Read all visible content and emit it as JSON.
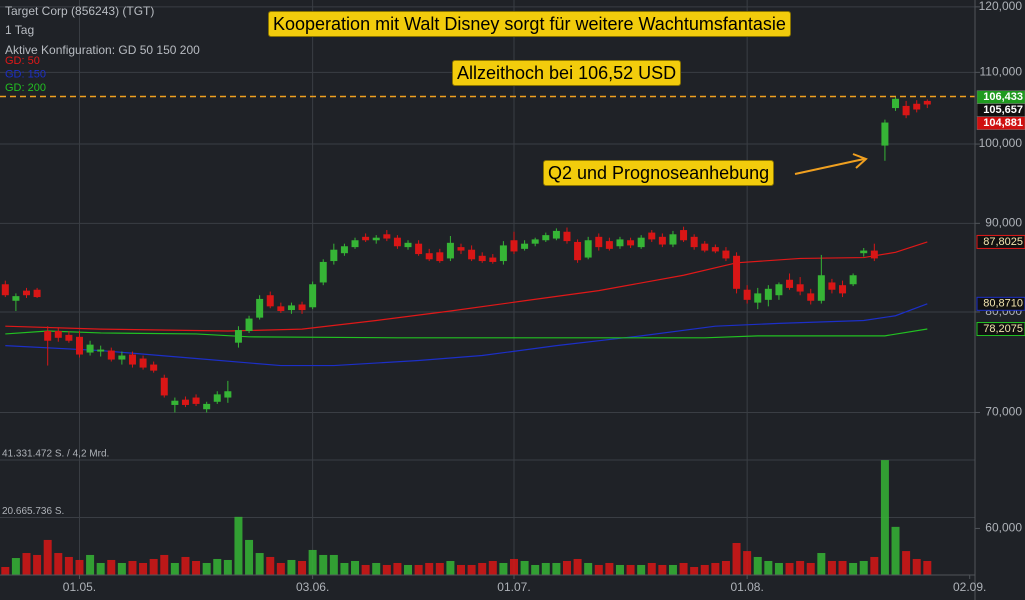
{
  "chart_data": {
    "type": "candlestick",
    "title": "Target Corp (856243) (TGT)",
    "interval": "1 Tag",
    "config": "Aktive Konfiguration: GD 50 150 200",
    "log_y": true,
    "grid": true,
    "up_color": "#36b536",
    "down_color": "#d91616",
    "xlim": [
      -0.5,
      91.5
    ],
    "xticks": [
      {
        "value": 7,
        "label": "01.05."
      },
      {
        "value": 29,
        "label": "03.06."
      },
      {
        "value": 48,
        "label": "01.07."
      },
      {
        "value": 70,
        "label": "01.08."
      },
      {
        "value": 91,
        "label": "02.09."
      }
    ],
    "ylim": [
      56.4,
      121.1
    ],
    "yticks": [
      {
        "value": 60,
        "label": "60,000"
      },
      {
        "value": 70,
        "label": "70,000"
      },
      {
        "value": 80,
        "label": "80,000"
      },
      {
        "value": 90,
        "label": "90,000"
      },
      {
        "value": 100,
        "label": "100,000"
      },
      {
        "value": 110,
        "label": "110,000"
      },
      {
        "value": 120,
        "label": "120,000"
      }
    ],
    "open": [
      83.0,
      81.2,
      82.3,
      82.4,
      78.0,
      78.0,
      77.6,
      77.4,
      75.8,
      75.9,
      76.0,
      75.1,
      75.6,
      75.2,
      74.6,
      73.3,
      70.7,
      71.2,
      71.4,
      70.3,
      71.0,
      71.4,
      76.8,
      78.0,
      79.4,
      81.8,
      80.6,
      80.2,
      80.8,
      80.5,
      83.2,
      85.6,
      86.5,
      87.2,
      88.4,
      88.0,
      88.7,
      88.3,
      87.2,
      87.6,
      86.5,
      86.6,
      85.9,
      87.2,
      86.9,
      86.2,
      86.0,
      85.6,
      88.0,
      87.0,
      87.6,
      88.0,
      88.2,
      89.0,
      87.8,
      86.0,
      88.4,
      87.9,
      87.3,
      88.0,
      87.2,
      88.9,
      88.4,
      87.5,
      89.2,
      88.4,
      87.6,
      87.2,
      86.8,
      86.2,
      82.4,
      81.0,
      81.3,
      81.8,
      83.5,
      83.0,
      82.0,
      81.2,
      83.2,
      82.9,
      83.0,
      86.5,
      86.8,
      99.8,
      104.9,
      105.2,
      105.5,
      105.9
    ],
    "high": [
      83.4,
      82.0,
      82.6,
      82.6,
      78.5,
      78.4,
      78.0,
      78.0,
      77.0,
      76.5,
      76.3,
      75.9,
      75.9,
      75.5,
      74.9,
      73.6,
      71.4,
      71.5,
      71.7,
      71.0,
      72.0,
      73.0,
      78.5,
      79.6,
      81.8,
      82.2,
      81.0,
      81.0,
      81.1,
      83.3,
      85.8,
      87.6,
      87.6,
      88.3,
      88.8,
      88.6,
      89.2,
      88.6,
      88.0,
      88.0,
      87.0,
      87.0,
      88.5,
      87.6,
      87.4,
      86.6,
      86.4,
      87.9,
      89.0,
      88.0,
      88.3,
      88.9,
      89.4,
      89.5,
      88.1,
      88.4,
      88.8,
      88.3,
      88.4,
      88.3,
      88.6,
      89.2,
      88.8,
      89.1,
      89.6,
      88.7,
      87.9,
      87.5,
      87.2,
      86.6,
      82.9,
      82.6,
      82.9,
      83.2,
      84.2,
      83.8,
      82.5,
      86.3,
      83.6,
      83.4,
      84.2,
      87.1,
      87.6,
      103.3,
      106.52,
      105.9,
      106.0,
      106.1
    ],
    "low": [
      81.6,
      80.1,
      81.5,
      81.5,
      74.5,
      76.9,
      76.8,
      75.3,
      75.5,
      75.4,
      74.9,
      74.6,
      74.3,
      74.1,
      73.8,
      71.4,
      70.0,
      70.5,
      70.6,
      70.0,
      70.8,
      70.9,
      76.3,
      77.8,
      79.2,
      80.4,
      79.9,
      79.8,
      79.8,
      80.3,
      82.9,
      85.2,
      86.2,
      87.0,
      87.8,
      87.6,
      87.9,
      87.0,
      86.9,
      86.2,
      85.6,
      85.4,
      85.6,
      86.4,
      85.6,
      85.4,
      85.3,
      85.2,
      86.4,
      86.8,
      87.3,
      87.8,
      88.0,
      87.6,
      85.4,
      85.8,
      86.8,
      86.8,
      87.0,
      87.1,
      87.0,
      87.8,
      87.2,
      87.2,
      87.8,
      86.9,
      86.6,
      86.5,
      85.6,
      82.0,
      80.9,
      80.3,
      80.6,
      81.3,
      82.4,
      81.8,
      80.8,
      80.9,
      82.0,
      81.6,
      82.8,
      86.1,
      85.6,
      97.8,
      104.5,
      103.5,
      104.3,
      104.9
    ],
    "close": [
      81.8,
      81.7,
      81.8,
      81.6,
      77.0,
      77.3,
      77.0,
      75.6,
      76.6,
      76.1,
      75.1,
      75.5,
      74.6,
      74.3,
      74.0,
      71.6,
      71.1,
      70.7,
      70.8,
      70.8,
      71.7,
      72.0,
      78.1,
      79.3,
      81.4,
      80.6,
      80.1,
      80.7,
      80.2,
      83.0,
      85.5,
      86.9,
      87.3,
      88.0,
      88.0,
      88.3,
      88.2,
      87.3,
      87.7,
      86.4,
      85.8,
      85.6,
      87.7,
      86.8,
      85.8,
      85.6,
      85.5,
      87.4,
      86.7,
      87.6,
      88.1,
      88.6,
      89.1,
      87.9,
      85.7,
      88.0,
      87.2,
      87.0,
      88.1,
      87.4,
      88.3,
      88.1,
      87.5,
      88.7,
      88.0,
      87.2,
      86.8,
      86.7,
      85.9,
      82.5,
      81.3,
      82.0,
      82.5,
      83.0,
      82.6,
      82.2,
      81.2,
      84.0,
      82.4,
      82.0,
      84.0,
      86.8,
      85.9,
      102.9,
      106.2,
      103.9,
      104.7,
      105.4
    ],
    "volume": {
      "values": [
        2880000,
        6100000,
        7900000,
        7200000,
        12600000,
        7900000,
        6480000,
        5400000,
        7200000,
        4320000,
        5400000,
        4320000,
        5040000,
        4320000,
        5760000,
        7200000,
        4320000,
        6480000,
        5040000,
        4320000,
        5760000,
        5400000,
        20900000,
        12600000,
        7900000,
        6480000,
        4320000,
        5400000,
        5040000,
        9000000,
        7200000,
        7200000,
        4320000,
        5040000,
        3600000,
        4320000,
        3600000,
        4320000,
        3600000,
        3600000,
        4320000,
        4320000,
        5040000,
        3600000,
        3600000,
        4320000,
        5040000,
        4320000,
        5760000,
        5040000,
        3600000,
        4320000,
        4320000,
        5040000,
        5760000,
        4320000,
        3600000,
        4320000,
        3600000,
        3600000,
        3600000,
        4320000,
        3600000,
        3600000,
        4320000,
        2880000,
        3600000,
        4320000,
        5040000,
        11500000,
        8600000,
        6480000,
        5040000,
        4320000,
        4320000,
        5040000,
        4320000,
        7900000,
        5040000,
        5040000,
        4320000,
        5040000,
        6480000,
        41300000,
        17300000,
        8600000,
        5760000,
        5040000
      ],
      "ylim": [
        0,
        41331472
      ],
      "yticks": [
        {
          "value": 41331472,
          "label": "41.331.472 S. / 4,2 Mrd."
        },
        {
          "value": 20665736,
          "label": "20.665.736 S."
        }
      ]
    },
    "series": [
      {
        "name": "GD: 50",
        "color": "#e01818",
        "x": [
          0,
          9,
          21,
          28,
          35,
          42,
          49,
          56,
          64,
          69,
          75,
          81,
          84,
          87
        ],
        "values": [
          78.5,
          78.2,
          78.0,
          78.2,
          79.1,
          80.1,
          81.2,
          82.3,
          84.0,
          85.4,
          85.9,
          86.0,
          86.6,
          87.8025
        ],
        "end_label": "87,8025"
      },
      {
        "name": "GD: 150",
        "color": "#1c2fc8",
        "x": [
          0,
          9,
          18,
          26,
          31,
          39,
          45,
          52,
          60,
          67,
          73,
          81,
          84,
          87
        ],
        "values": [
          76.5,
          76.0,
          75.2,
          74.5,
          74.5,
          75.0,
          75.5,
          76.5,
          77.5,
          78.5,
          78.8,
          79.1,
          79.6,
          80.871
        ],
        "end_label": "80,8710"
      },
      {
        "name": "GD: 200",
        "color": "#22c022",
        "x": [
          0,
          4,
          9,
          18,
          23,
          37,
          66,
          71,
          83,
          87
        ],
        "values": [
          77.7,
          78.0,
          77.8,
          77.7,
          77.4,
          77.3,
          77.3,
          77.5,
          77.5,
          78.2075
        ],
        "end_label": "78,2075"
      }
    ],
    "price_labels": [
      {
        "value": 106.433,
        "label": "106,433",
        "color": "#1f9a1f"
      },
      {
        "value": 105.657,
        "label": "105,657",
        "color": "#111111"
      },
      {
        "value": 104.881,
        "label": "104,881",
        "color": "#d01010"
      }
    ],
    "reference_line": {
      "value": 106.52,
      "color": "#f0a020"
    },
    "annotations": [
      {
        "text": "Kooperation mit Walt Disney sorgt für weitere Wachtumsfantasie"
      },
      {
        "text": "Allzeithoch bei 106,52 USD"
      },
      {
        "text": "Q2 und Prognoseanhebung"
      }
    ]
  }
}
